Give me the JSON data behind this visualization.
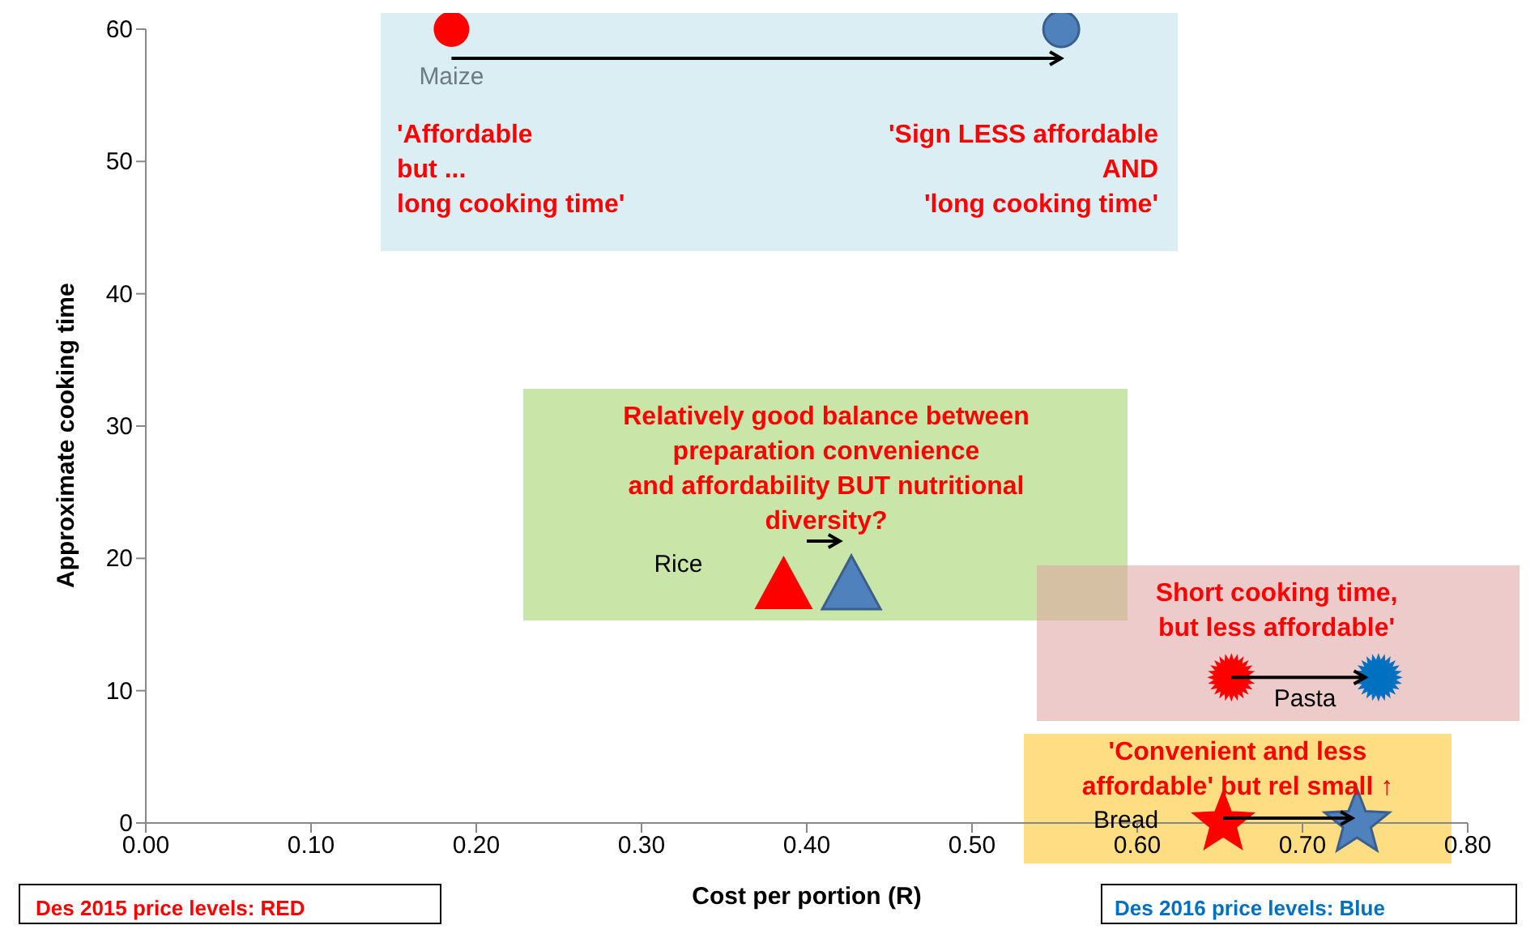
{
  "chart_data": {
    "type": "scatter",
    "xlabel": "Cost per portion (R)",
    "ylabel": "Approximate cooking time",
    "xlim": [
      0,
      0.8
    ],
    "ylim": [
      0,
      60
    ],
    "xticks": [
      {
        "value": 0,
        "label": "0.00"
      },
      {
        "value": 0.1,
        "label": "0.10"
      },
      {
        "value": 0.2,
        "label": "0.20"
      },
      {
        "value": 0.3,
        "label": "0.30"
      },
      {
        "value": 0.4,
        "label": "0.40"
      },
      {
        "value": 0.5,
        "label": "0.50"
      },
      {
        "value": 0.6,
        "label": "0.60"
      },
      {
        "value": 0.7,
        "label": "0.70"
      },
      {
        "value": 0.8,
        "label": "0.80"
      }
    ],
    "yticks": [
      0,
      10,
      20,
      30,
      40,
      50,
      60
    ],
    "grid": false,
    "legend": false,
    "series": [
      {
        "name": "Maize",
        "marker": "circle",
        "colors": [
          "#ff0000",
          "#4f81bd"
        ],
        "x": [
          0.185,
          0.554
        ],
        "values": [
          60,
          60
        ]
      },
      {
        "name": "Rice",
        "marker": "triangle",
        "colors": [
          "#ff0000",
          "#4f81bd"
        ],
        "x": [
          0.386,
          0.427
        ],
        "values": [
          18,
          18
        ]
      },
      {
        "name": "Pasta",
        "marker": "star",
        "colors": [
          "#ff0000",
          "#0070c0"
        ],
        "x": [
          0.657,
          0.746
        ],
        "values": [
          11,
          11
        ]
      },
      {
        "name": "Bread",
        "marker": "star",
        "colors": [
          "#ff0000",
          "#4f81bd"
        ],
        "x": [
          0.652,
          0.733
        ],
        "values": [
          0,
          0
        ]
      }
    ],
    "annotations": [
      "'Affordable\nbut ...\nlong cooking time'",
      "'Sign LESS affordable\nAND\n'long cooking time'",
      "Relatively good balance between\npreparation convenience\nand affordability BUT nutritional\ndiversity?",
      "Short cooking time,\nbut less affordable'",
      "'Convenient and less\naffordable' but rel small ↑",
      "Des 2015 price levels: RED",
      "Des 2016 price levels: Blue"
    ]
  }
}
